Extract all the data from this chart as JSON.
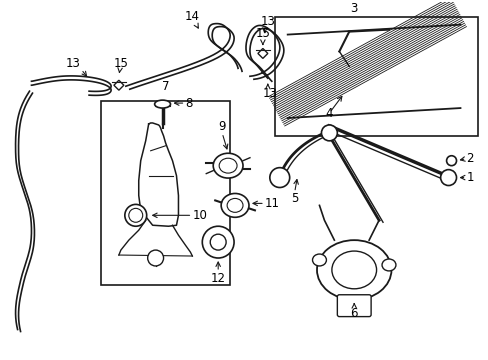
{
  "bg_color": "#ffffff",
  "fig_width": 4.89,
  "fig_height": 3.6,
  "dpi": 100,
  "line_color": "#1a1a1a",
  "label_fontsize": 8.5,
  "label_fontsize_sm": 7.5
}
